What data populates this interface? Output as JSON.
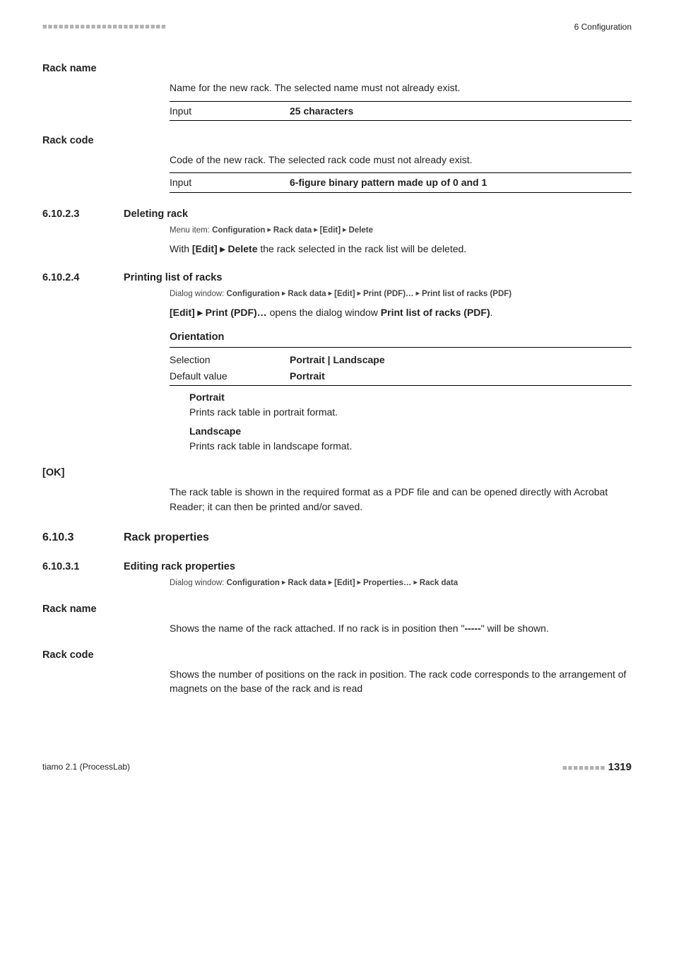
{
  "header": {
    "dashes": "■■■■■■■■■■■■■■■■■■■■■■■",
    "chapter": "6 Configuration"
  },
  "params": {
    "rack_name": {
      "label": "Rack name",
      "desc": "Name for the new rack. The selected name must not already exist.",
      "input_label": "Input",
      "input_value": "25 characters"
    },
    "rack_code": {
      "label": "Rack code",
      "desc": "Code of the new rack. The selected rack code must not already exist.",
      "input_label": "Input",
      "input_value": "6-figure binary pattern made up of 0 and 1"
    }
  },
  "s61023": {
    "num": "6.10.2.3",
    "title": "Deleting rack",
    "menu": "Menu item: ",
    "menu_path": [
      "Configuration",
      "Rack data",
      "[Edit]",
      "Delete"
    ],
    "body_pre": "With ",
    "body_bold": "[Edit] ▸ Delete",
    "body_post": " the rack selected in the rack list will be deleted."
  },
  "s61024": {
    "num": "6.10.2.4",
    "title": "Printing list of racks",
    "menu": "Dialog window: ",
    "menu_path": [
      "Configuration",
      "Rack data",
      "[Edit]",
      "Print (PDF)…",
      "Print list of racks (PDF)"
    ],
    "body1_pre": "",
    "body1_b1": "[Edit] ▸ Print (PDF)…",
    "body1_mid": " opens the dialog window ",
    "body1_b2": "Print list of racks (PDF)",
    "body1_post": ".",
    "orientation_head": "Orientation",
    "sel_label": "Selection",
    "sel_value": "Portrait | Landscape",
    "def_label": "Default value",
    "def_value": "Portrait",
    "portrait_term": "Portrait",
    "portrait_desc": "Prints rack table in portrait format.",
    "landscape_term": "Landscape",
    "landscape_desc": "Prints rack table in landscape format."
  },
  "ok": {
    "label": "[OK]",
    "desc": "The rack table is shown in the required format as a PDF file and can be opened directly with Acrobat Reader; it can then be printed and/or saved."
  },
  "s6103": {
    "num": "6.10.3",
    "title": "Rack properties"
  },
  "s61031": {
    "num": "6.10.3.1",
    "title": "Editing rack properties",
    "menu": "Dialog window: ",
    "menu_path": [
      "Configuration",
      "Rack data",
      "[Edit]",
      "Properties…",
      "Rack data"
    ]
  },
  "rn2": {
    "label": "Rack name",
    "desc_pre": "Shows the name of the rack attached. If no rack is in position then \"",
    "desc_b": "-----",
    "desc_post": "\" will be shown."
  },
  "rc2": {
    "label": "Rack code",
    "desc": "Shows the number of positions on the rack in position. The rack code corresponds to the arrangement of magnets on the base of the rack and is read"
  },
  "footer": {
    "product": "tiamo 2.1 (ProcessLab)",
    "dashes": "■■■■■■■■",
    "page": "1319"
  }
}
